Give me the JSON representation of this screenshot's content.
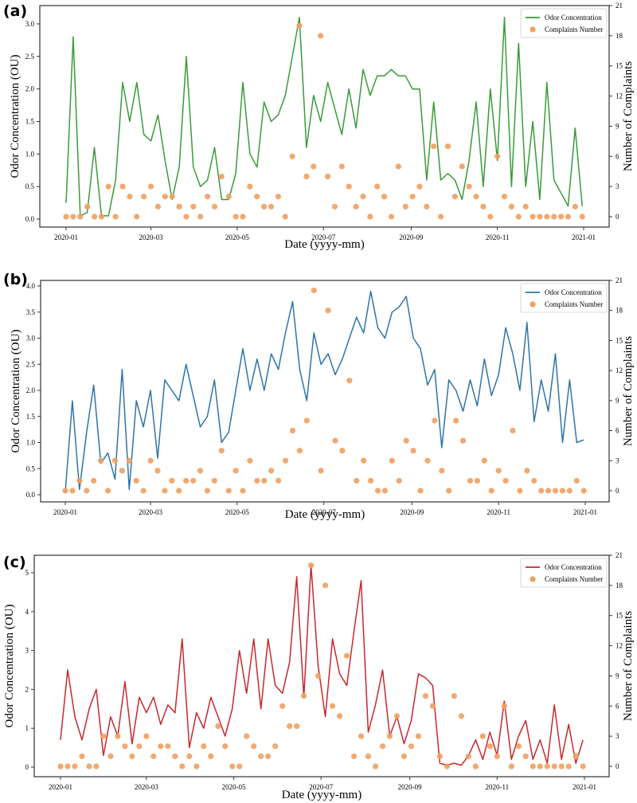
{
  "chart_data": [
    {
      "panel_label": "(a)",
      "type": "line+scatter",
      "xlabel": "Date (yyyy-mm)",
      "ylabel_left": "Odor Concentration (OU)",
      "ylabel_right": "Number of Complaints",
      "xticks": [
        "2020-01",
        "2020-03",
        "2020-05",
        "2020-07",
        "2020-09",
        "2020-11",
        "2021-01"
      ],
      "yticks_left": [
        "0.0",
        "0.5",
        "1.0",
        "1.5",
        "2.0",
        "2.5",
        "3.0"
      ],
      "yticks_right": [
        "0",
        "3",
        "6",
        "9",
        "12",
        "15",
        "18",
        "21"
      ],
      "legend": {
        "position": "top-right",
        "entries": [
          "Odor Concentration",
          "Complaints Number"
        ]
      },
      "line_color": "#3a9a3a",
      "dot_color": "#f0a060",
      "grid": false,
      "dates": [
        "2020-01-01",
        "2020-01-06",
        "2020-01-11",
        "2020-01-16",
        "2020-01-21",
        "2020-01-26",
        "2020-01-31",
        "2020-02-05",
        "2020-02-10",
        "2020-02-15",
        "2020-02-20",
        "2020-02-25",
        "2020-03-01",
        "2020-03-06",
        "2020-03-11",
        "2020-03-16",
        "2020-03-21",
        "2020-03-26",
        "2020-03-31",
        "2020-04-05",
        "2020-04-10",
        "2020-04-15",
        "2020-04-20",
        "2020-04-25",
        "2020-04-30",
        "2020-05-05",
        "2020-05-10",
        "2020-05-15",
        "2020-05-20",
        "2020-05-25",
        "2020-05-30",
        "2020-06-04",
        "2020-06-09",
        "2020-06-14",
        "2020-06-19",
        "2020-06-24",
        "2020-06-29",
        "2020-07-04",
        "2020-07-09",
        "2020-07-14",
        "2020-07-19",
        "2020-07-24",
        "2020-07-29",
        "2020-08-03",
        "2020-08-08",
        "2020-08-13",
        "2020-08-18",
        "2020-08-23",
        "2020-08-28",
        "2020-09-02",
        "2020-09-07",
        "2020-09-12",
        "2020-09-17",
        "2020-09-22",
        "2020-09-27",
        "2020-10-02",
        "2020-10-07",
        "2020-10-12",
        "2020-10-17",
        "2020-10-22",
        "2020-10-27",
        "2020-11-01",
        "2020-11-06",
        "2020-11-11",
        "2020-11-16",
        "2020-11-21",
        "2020-11-26",
        "2020-12-01",
        "2020-12-06",
        "2020-12-11",
        "2020-12-16",
        "2020-12-21",
        "2020-12-26",
        "2020-12-31"
      ],
      "odor": [
        0.25,
        2.8,
        0.05,
        0.1,
        1.1,
        0.05,
        0.05,
        0.6,
        2.1,
        1.5,
        2.1,
        1.3,
        1.2,
        1.6,
        0.9,
        0.3,
        0.8,
        2.5,
        0.8,
        0.5,
        0.6,
        1.1,
        0.3,
        0.3,
        0.7,
        2.1,
        1.0,
        0.8,
        1.8,
        1.5,
        1.6,
        1.9,
        2.5,
        3.1,
        1.1,
        1.9,
        1.5,
        2.1,
        1.7,
        1.3,
        2.0,
        1.4,
        2.3,
        1.9,
        2.2,
        2.2,
        2.3,
        2.2,
        2.2,
        2.0,
        2.0,
        0.6,
        1.8,
        0.6,
        0.7,
        0.6,
        0.3,
        0.9,
        1.8,
        0.5,
        2.0,
        0.9,
        3.1,
        0.5,
        2.7,
        0.5,
        1.5,
        0.3,
        2.1,
        0.6,
        0.4,
        0.2,
        1.4,
        0.2
      ],
      "complaints": [
        0,
        0,
        0,
        1,
        0,
        0,
        3,
        0,
        3,
        2,
        0,
        2,
        3,
        1,
        2,
        2,
        1,
        0,
        1,
        0,
        2,
        1,
        4,
        2,
        0,
        0,
        3,
        2,
        1,
        1,
        2,
        0,
        6,
        19,
        4,
        5,
        18,
        4,
        1,
        5,
        3,
        1,
        2,
        0,
        3,
        2,
        0,
        5,
        1,
        2,
        3,
        1,
        7,
        0,
        7,
        2,
        5,
        3,
        2,
        1,
        0,
        6,
        2,
        1,
        0,
        1,
        0,
        0,
        0,
        0,
        0,
        0,
        1,
        0
      ]
    },
    {
      "panel_label": "(b)",
      "type": "line+scatter",
      "xlabel": "Date (yyyy-mm)",
      "ylabel_left": "Odor Concentration (OU)",
      "ylabel_right": "Number of Complaints",
      "xticks": [
        "2020-01",
        "2020-03",
        "2020-05",
        "2020-07",
        "2020-09",
        "2020-11",
        "2021-01"
      ],
      "yticks_left": [
        "0.0",
        "0.5",
        "1.0",
        "1.5",
        "2.0",
        "2.5",
        "3.0",
        "3.5",
        "4.0"
      ],
      "yticks_right": [
        "0",
        "3",
        "6",
        "9",
        "12",
        "15",
        "18",
        "21"
      ],
      "legend": {
        "position": "top-right",
        "entries": [
          "Odor Concentration",
          "Complaints Number"
        ]
      },
      "line_color": "#2f74a8",
      "dot_color": "#f0a060",
      "grid": false,
      "dates": [
        "2020-01-01",
        "2020-01-06",
        "2020-01-11",
        "2020-01-16",
        "2020-01-21",
        "2020-01-26",
        "2020-01-31",
        "2020-02-05",
        "2020-02-10",
        "2020-02-15",
        "2020-02-20",
        "2020-02-25",
        "2020-03-01",
        "2020-03-06",
        "2020-03-11",
        "2020-03-16",
        "2020-03-21",
        "2020-03-26",
        "2020-03-31",
        "2020-04-05",
        "2020-04-10",
        "2020-04-15",
        "2020-04-20",
        "2020-04-25",
        "2020-04-30",
        "2020-05-05",
        "2020-05-10",
        "2020-05-15",
        "2020-05-20",
        "2020-05-25",
        "2020-05-30",
        "2020-06-04",
        "2020-06-09",
        "2020-06-14",
        "2020-06-19",
        "2020-06-24",
        "2020-06-29",
        "2020-07-04",
        "2020-07-09",
        "2020-07-14",
        "2020-07-19",
        "2020-07-24",
        "2020-07-29",
        "2020-08-03",
        "2020-08-08",
        "2020-08-13",
        "2020-08-18",
        "2020-08-23",
        "2020-08-28",
        "2020-09-02",
        "2020-09-07",
        "2020-09-12",
        "2020-09-17",
        "2020-09-22",
        "2020-09-27",
        "2020-10-02",
        "2020-10-07",
        "2020-10-12",
        "2020-10-17",
        "2020-10-22",
        "2020-10-27",
        "2020-11-01",
        "2020-11-06",
        "2020-11-11",
        "2020-11-16",
        "2020-11-21",
        "2020-11-26",
        "2020-12-01",
        "2020-12-06",
        "2020-12-11",
        "2020-12-16",
        "2020-12-21",
        "2020-12-26",
        "2020-12-31"
      ],
      "odor": [
        0.05,
        1.8,
        0.1,
        1.2,
        2.1,
        0.6,
        0.8,
        0.3,
        2.4,
        0.1,
        1.8,
        1.3,
        2.0,
        0.7,
        2.2,
        2.0,
        1.8,
        2.5,
        1.9,
        1.3,
        1.5,
        2.2,
        1.0,
        1.2,
        2.0,
        2.8,
        2.0,
        2.6,
        2.0,
        2.7,
        2.4,
        3.1,
        3.7,
        2.4,
        1.8,
        3.1,
        2.5,
        2.7,
        2.3,
        2.6,
        3.0,
        3.4,
        3.1,
        3.9,
        3.2,
        3.0,
        3.5,
        3.6,
        3.8,
        3.0,
        2.8,
        2.1,
        2.4,
        0.9,
        2.2,
        2.0,
        1.6,
        2.2,
        1.7,
        2.6,
        1.9,
        2.3,
        3.2,
        2.7,
        2.0,
        3.3,
        1.4,
        2.2,
        1.6,
        2.7,
        1.0,
        2.2,
        1.0,
        1.05
      ],
      "complaints": [
        0,
        0,
        1,
        0,
        1,
        3,
        0,
        3,
        2,
        3,
        1,
        0,
        3,
        2,
        0,
        1,
        0,
        1,
        1,
        2,
        0,
        1,
        4,
        0,
        2,
        0,
        3,
        1,
        1,
        2,
        1,
        3,
        6,
        4,
        7,
        20,
        2,
        18,
        5,
        4,
        11,
        1,
        3,
        1,
        0,
        0,
        3,
        1,
        5,
        4,
        0,
        3,
        7,
        2,
        0,
        7,
        5,
        1,
        1,
        3,
        0,
        2,
        1,
        6,
        0,
        2,
        1,
        0,
        0,
        0,
        0,
        0,
        1,
        0
      ]
    },
    {
      "panel_label": "(c)",
      "type": "line+scatter",
      "xlabel": "Date (yyyy-mm)",
      "ylabel_left": "Odor Concentration (OU)",
      "ylabel_right": "Number of Complaints",
      "xticks": [
        "2020-01",
        "2020-03",
        "2020-05",
        "2020-07",
        "2020-09",
        "2020-11",
        "2021-01"
      ],
      "yticks_left": [
        "0",
        "1",
        "2",
        "3",
        "4",
        "5"
      ],
      "yticks_right": [
        "0",
        "3",
        "6",
        "9",
        "12",
        "15",
        "18",
        "21"
      ],
      "legend": {
        "position": "top-right",
        "entries": [
          "Odor Concentration",
          "Complaints Number"
        ]
      },
      "line_color": "#c8282c",
      "dot_color": "#f0a060",
      "grid": false,
      "dates": [
        "2020-01-01",
        "2020-01-06",
        "2020-01-11",
        "2020-01-16",
        "2020-01-21",
        "2020-01-26",
        "2020-01-31",
        "2020-02-05",
        "2020-02-10",
        "2020-02-15",
        "2020-02-20",
        "2020-02-25",
        "2020-03-01",
        "2020-03-06",
        "2020-03-11",
        "2020-03-16",
        "2020-03-21",
        "2020-03-26",
        "2020-03-31",
        "2020-04-05",
        "2020-04-10",
        "2020-04-15",
        "2020-04-20",
        "2020-04-25",
        "2020-04-30",
        "2020-05-05",
        "2020-05-10",
        "2020-05-15",
        "2020-05-20",
        "2020-05-25",
        "2020-05-30",
        "2020-06-04",
        "2020-06-09",
        "2020-06-14",
        "2020-06-19",
        "2020-06-24",
        "2020-06-29",
        "2020-07-04",
        "2020-07-09",
        "2020-07-14",
        "2020-07-19",
        "2020-07-24",
        "2020-07-29",
        "2020-08-03",
        "2020-08-08",
        "2020-08-13",
        "2020-08-18",
        "2020-08-23",
        "2020-08-28",
        "2020-09-02",
        "2020-09-07",
        "2020-09-12",
        "2020-09-17",
        "2020-09-22",
        "2020-09-27",
        "2020-10-02",
        "2020-10-07",
        "2020-10-12",
        "2020-10-17",
        "2020-10-22",
        "2020-10-27",
        "2020-11-01",
        "2020-11-06",
        "2020-11-11",
        "2020-11-16",
        "2020-11-21",
        "2020-11-26",
        "2020-12-01",
        "2020-12-06",
        "2020-12-11",
        "2020-12-16",
        "2020-12-21",
        "2020-12-26",
        "2020-12-31"
      ],
      "odor": [
        0.7,
        2.5,
        1.3,
        0.7,
        1.5,
        2.0,
        0.3,
        1.3,
        0.8,
        2.2,
        0.6,
        1.8,
        1.4,
        1.8,
        1.1,
        1.6,
        1.4,
        3.3,
        0.5,
        1.4,
        1.0,
        1.8,
        1.3,
        0.8,
        1.5,
        3.0,
        1.9,
        3.3,
        1.5,
        3.3,
        2.1,
        1.9,
        2.7,
        4.9,
        1.8,
        5.2,
        2.6,
        1.3,
        3.3,
        2.4,
        2.1,
        3.5,
        4.8,
        0.9,
        1.6,
        2.5,
        0.8,
        1.3,
        0.6,
        1.2,
        2.4,
        2.3,
        2.1,
        0.1,
        0.05,
        0.1,
        0.05,
        0.3,
        0.7,
        0.2,
        0.9,
        0.3,
        1.7,
        0.2,
        0.8,
        1.2,
        0.2,
        0.7,
        0.1,
        1.6,
        0.2,
        1.1,
        0.1,
        0.7
      ],
      "complaints": [
        0,
        0,
        0,
        1,
        0,
        0,
        3,
        1,
        3,
        2,
        1,
        2,
        3,
        1,
        2,
        2,
        1,
        0,
        1,
        0,
        2,
        1,
        4,
        2,
        0,
        0,
        3,
        2,
        1,
        1,
        2,
        6,
        4,
        4,
        7,
        20,
        9,
        18,
        6,
        5,
        11,
        1,
        3,
        1,
        0,
        2,
        3,
        5,
        1,
        2,
        3,
        7,
        6,
        1,
        0,
        7,
        5,
        1,
        0,
        3,
        2,
        1,
        6,
        0,
        2,
        1,
        0,
        0,
        0,
        0,
        0,
        0,
        1,
        0
      ]
    }
  ]
}
